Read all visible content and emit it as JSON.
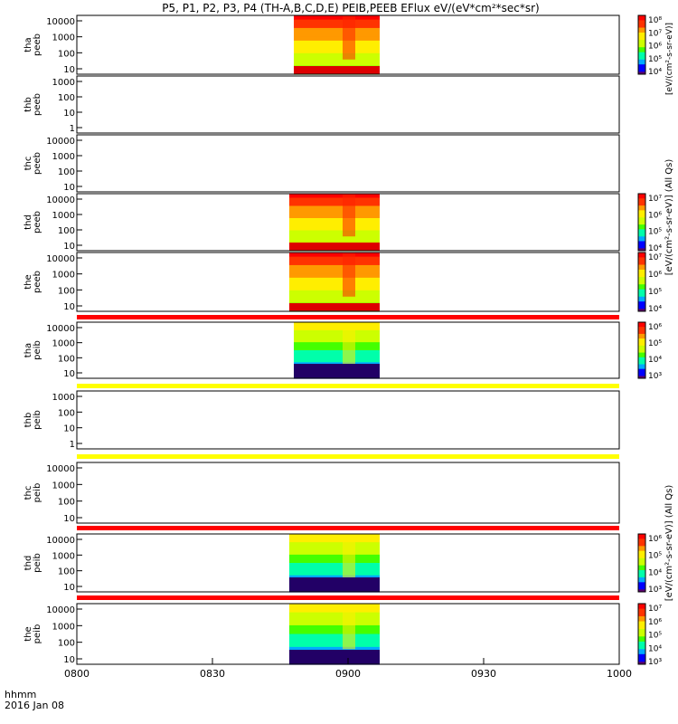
{
  "title": "P5, P1, P2, P3, P4 (TH-A,B,C,D,E) PEIB,PEEB EFlux eV/(eV*cm²*sec*sr)",
  "footer": {
    "time_label": "hhmm",
    "date_label": "2016 Jan 08"
  },
  "colorbar_labels": {
    "peeb_a": "[eV/(cm²-s-sr-eV)]",
    "peeb_group": "[eV/(cm²-s-sr-eV)] (All Qs)",
    "peib_group": "[eV/(cm²-s-sr-eV)] (All Qs)"
  },
  "colors": {
    "red_strip": "#ff0000",
    "yellow_strip": "#ffff00",
    "spectrum": [
      "#5a006e",
      "#0000ff",
      "#00aaff",
      "#00ffaa",
      "#44ff00",
      "#ccff00",
      "#ffee00",
      "#ff9900",
      "#ff3300",
      "#ff0000"
    ]
  },
  "chart_data": {
    "type": "heatmap",
    "x_axis": {
      "label": "hhmm",
      "ticks": [
        "0800",
        "0830",
        "0900",
        "0930",
        "1000"
      ],
      "range": [
        "08:00",
        "10:00"
      ]
    },
    "panels": [
      {
        "id": "tha-peeb",
        "probe": "tha",
        "product": "peeb",
        "ylabel": "tha\npeeb",
        "yticks": [
          "10",
          "100",
          "1000",
          "10000"
        ],
        "yscale": "log",
        "data_window": [
          "08:48",
          "09:07"
        ],
        "colorbar": {
          "ticks": [
            "10⁴",
            "10⁵",
            "10⁶",
            "10⁷",
            "10⁸"
          ],
          "label_key": "peeb_a"
        }
      },
      {
        "id": "thb-peeb",
        "probe": "thb",
        "product": "peeb",
        "ylabel": "thb\npeeb",
        "yticks": [
          "1",
          "10",
          "100",
          "1000"
        ],
        "yscale": "log",
        "data_window": null
      },
      {
        "id": "thc-peeb",
        "probe": "thc",
        "product": "peeb",
        "ylabel": "thc\npeeb",
        "yticks": [
          "10",
          "100",
          "1000",
          "10000"
        ],
        "yscale": "log",
        "data_window": null
      },
      {
        "id": "thd-peeb",
        "probe": "thd",
        "product": "peeb",
        "ylabel": "thd\npeeb",
        "yticks": [
          "10",
          "100",
          "1000",
          "10000"
        ],
        "yscale": "log",
        "data_window": [
          "08:47",
          "09:07"
        ],
        "colorbar": {
          "ticks": [
            "10⁴",
            "10⁵",
            "10⁶",
            "10⁷"
          ]
        }
      },
      {
        "id": "the-peeb",
        "probe": "the",
        "product": "peeb",
        "ylabel": "the\npeeb",
        "yticks": [
          "10",
          "100",
          "1000",
          "10000"
        ],
        "yscale": "log",
        "data_window": [
          "08:47",
          "09:07"
        ],
        "colorbar": {
          "ticks": [
            "10⁴",
            "10⁵",
            "10⁶",
            "10⁷"
          ]
        }
      },
      {
        "id": "tha-peib",
        "probe": "tha",
        "product": "peib",
        "ylabel": "tha\npeib",
        "yticks": [
          "10",
          "100",
          "1000",
          "10000"
        ],
        "yscale": "log",
        "data_window": [
          "08:48",
          "09:07"
        ],
        "colorbar": {
          "ticks": [
            "10³",
            "10⁴",
            "10⁵",
            "10⁶"
          ]
        }
      },
      {
        "id": "thb-peib",
        "probe": "thb",
        "product": "peib",
        "ylabel": "thb\npeib",
        "yticks": [
          "1",
          "10",
          "100",
          "1000"
        ],
        "yscale": "log",
        "data_window": null
      },
      {
        "id": "thc-peib",
        "probe": "thc",
        "product": "peib",
        "ylabel": "thc\npeib",
        "yticks": [
          "10",
          "100",
          "1000",
          "10000"
        ],
        "yscale": "log",
        "data_window": null
      },
      {
        "id": "thd-peib",
        "probe": "thd",
        "product": "peib",
        "ylabel": "thd\npeib",
        "yticks": [
          "10",
          "100",
          "1000",
          "10000"
        ],
        "yscale": "log",
        "data_window": [
          "08:47",
          "09:07"
        ],
        "colorbar": {
          "ticks": [
            "10³",
            "10⁴",
            "10⁵",
            "10⁶"
          ]
        }
      },
      {
        "id": "the-peib",
        "probe": "the",
        "product": "peib",
        "ylabel": "the\npeib",
        "yticks": [
          "10",
          "100",
          "1000",
          "10000"
        ],
        "yscale": "log",
        "data_window": [
          "08:47",
          "09:07"
        ],
        "colorbar": {
          "ticks": [
            "10³",
            "10⁴",
            "10⁵",
            "10⁶",
            "10⁷"
          ]
        }
      }
    ]
  }
}
